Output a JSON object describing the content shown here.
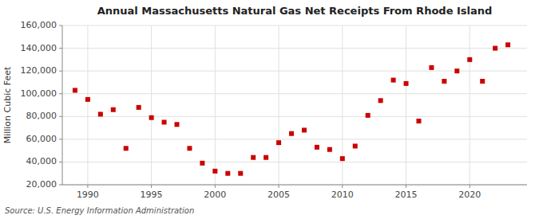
{
  "chart_data": {
    "type": "scatter",
    "title": "Annual Massachusetts Natural Gas Net Receipts From Rhode Island",
    "ylabel": "Million Cubic Feet",
    "source": "Source: U.S. Energy Information Administration",
    "x": [
      1989,
      1990,
      1991,
      1992,
      1993,
      1994,
      1995,
      1996,
      1997,
      1998,
      1999,
      2000,
      2001,
      2002,
      2003,
      2004,
      2005,
      2006,
      2007,
      2008,
      2009,
      2010,
      2011,
      2012,
      2013,
      2014,
      2015,
      2016,
      2017,
      2018,
      2019,
      2020,
      2021,
      2022,
      2023
    ],
    "values": [
      103000,
      95000,
      82000,
      86000,
      52000,
      88000,
      79000,
      75000,
      73000,
      52000,
      39000,
      32000,
      30000,
      30000,
      44000,
      44000,
      57000,
      65000,
      68000,
      53000,
      51000,
      43000,
      54000,
      81000,
      94000,
      112000,
      109000,
      76000,
      123000,
      111000,
      120000,
      130000,
      111000,
      140000,
      143000
    ],
    "color": "#cc0000",
    "marker": "square",
    "grid": true,
    "xlim": [
      1988.0,
      2024.5
    ],
    "xticks": [
      1990,
      1995,
      2000,
      2005,
      2010,
      2015,
      2020
    ],
    "ylim": [
      20000,
      160000
    ],
    "yticks": [
      {
        "value": 20000,
        "label": "20,000"
      },
      {
        "value": 40000,
        "label": "40,000"
      },
      {
        "value": 60000,
        "label": "60,000"
      },
      {
        "value": 80000,
        "label": "80,000"
      },
      {
        "value": 100000,
        "label": "100,000"
      },
      {
        "value": 120000,
        "label": "120,000"
      },
      {
        "value": 140000,
        "label": "140,000"
      },
      {
        "value": 160000,
        "label": "160,000"
      }
    ]
  }
}
